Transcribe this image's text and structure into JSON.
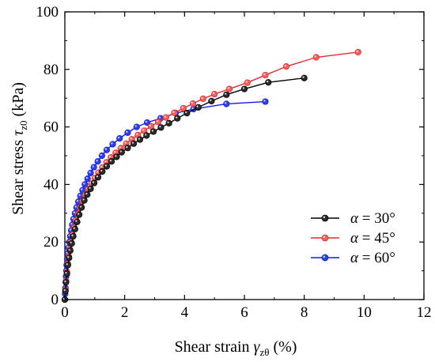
{
  "chart_data": {
    "type": "line",
    "xlabel": {
      "pre": "Shear strain ",
      "sym": "γ",
      "sub": "zθ",
      "post": "  (%)"
    },
    "ylabel": {
      "pre": "Shear stress ",
      "sym": "τ",
      "sub": "z0",
      "post": "  (kPa)"
    },
    "xlim": [
      0,
      12
    ],
    "ylim": [
      0,
      100
    ],
    "xticks": [
      0,
      2,
      4,
      6,
      8,
      10,
      12
    ],
    "yticks": [
      0,
      20,
      40,
      60,
      80,
      100
    ],
    "grid": false,
    "legend_position": "lower-right",
    "series": [
      {
        "name": "α = 30°",
        "greek": "α",
        "label_rest": " = 30°",
        "color": "#000000",
        "marker_fill": "#2b2b2b",
        "x": [
          0,
          0.02,
          0.04,
          0.07,
          0.1,
          0.14,
          0.18,
          0.23,
          0.28,
          0.34,
          0.41,
          0.48,
          0.56,
          0.65,
          0.75,
          0.86,
          0.98,
          1.11,
          1.25,
          1.4,
          1.56,
          1.73,
          1.9,
          2.1,
          2.3,
          2.51,
          2.73,
          2.96,
          3.21,
          3.48,
          3.76,
          4.08,
          4.46,
          4.9,
          5.4,
          6.0,
          6.8,
          8.0
        ],
        "y": [
          0,
          3,
          6,
          9,
          12,
          14.5,
          17,
          19.5,
          22,
          24.5,
          27,
          29.5,
          32,
          34.5,
          36.5,
          38.5,
          40.5,
          42.5,
          44.5,
          46.3,
          48,
          49.6,
          51.2,
          52.7,
          54.2,
          55.6,
          57,
          58.4,
          59.8,
          61.3,
          63,
          64.8,
          66.8,
          69,
          71.2,
          73.2,
          75.5,
          77
        ]
      },
      {
        "name": "α = 45°",
        "greek": "α",
        "label_rest": " = 45°",
        "color": "#e8292b",
        "marker_fill": "#f06060",
        "x": [
          0,
          0.02,
          0.04,
          0.07,
          0.1,
          0.13,
          0.17,
          0.21,
          0.26,
          0.31,
          0.37,
          0.44,
          0.51,
          0.59,
          0.68,
          0.78,
          0.89,
          1.0,
          1.12,
          1.25,
          1.39,
          1.54,
          1.7,
          1.87,
          2.05,
          2.24,
          2.44,
          2.65,
          2.88,
          3.12,
          3.38,
          3.66,
          3.96,
          4.28,
          4.62,
          5.0,
          5.5,
          6.1,
          6.7,
          7.4,
          8.4,
          9.8
        ],
        "y": [
          0,
          3.5,
          6.5,
          9.5,
          12.5,
          15,
          17.5,
          20,
          22.5,
          25,
          27.5,
          29.8,
          32,
          34.2,
          36.3,
          38.3,
          40.3,
          42.2,
          44.1,
          45.9,
          47.7,
          49.4,
          51,
          52.6,
          54.2,
          55.7,
          57.2,
          58.7,
          60.2,
          61.7,
          63.3,
          64.9,
          66.5,
          68.1,
          69.8,
          71.4,
          73.2,
          75.4,
          78,
          81,
          84.2,
          86
        ]
      },
      {
        "name": "α = 60°",
        "greek": "α",
        "label_rest": " = 60°",
        "color": "#0f1ee6",
        "marker_fill": "#2c3fe8",
        "x": [
          0,
          0.01,
          0.02,
          0.03,
          0.04,
          0.05,
          0.06,
          0.08,
          0.1,
          0.12,
          0.15,
          0.18,
          0.21,
          0.25,
          0.29,
          0.34,
          0.39,
          0.45,
          0.52,
          0.59,
          0.67,
          0.76,
          0.86,
          0.97,
          1.1,
          1.24,
          1.4,
          1.6,
          1.83,
          2.1,
          2.4,
          2.75,
          3.2,
          3.7,
          4.3,
          5.4,
          6.7
        ],
        "y": [
          0,
          2,
          4,
          6,
          8,
          10,
          12,
          14,
          16,
          18,
          20,
          22,
          24,
          26,
          28,
          30,
          32,
          34,
          36,
          38,
          40,
          42,
          44,
          46,
          48,
          50,
          52,
          54,
          56,
          58,
          60,
          61.5,
          63,
          64.8,
          66.2,
          68,
          68.8
        ]
      }
    ]
  }
}
